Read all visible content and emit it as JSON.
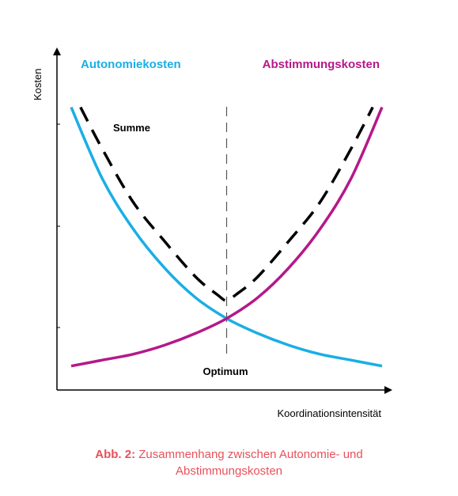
{
  "chart_data": {
    "type": "line",
    "xlabel": "Koordinationsintensität",
    "ylabel": "Kosten",
    "xlim": [
      0,
      1
    ],
    "ylim": [
      0,
      1
    ],
    "grid": false,
    "colors": {
      "autonomiekosten": "#1aaee5",
      "abstimmungskosten": "#b5188a",
      "summe": "#000000",
      "axis": "#000000"
    },
    "series": [
      {
        "name": "Autonomiekosten",
        "style": "solid",
        "x": [
          0.0,
          0.1,
          0.2,
          0.3,
          0.4,
          0.5,
          0.6,
          0.7,
          0.8,
          0.9,
          1.0
        ],
        "y": [
          0.9,
          0.66,
          0.49,
          0.36,
          0.26,
          0.19,
          0.14,
          0.1,
          0.07,
          0.05,
          0.03
        ]
      },
      {
        "name": "Abstimmungskosten",
        "style": "solid",
        "x": [
          0.0,
          0.1,
          0.2,
          0.3,
          0.4,
          0.5,
          0.6,
          0.7,
          0.8,
          0.9,
          1.0
        ],
        "y": [
          0.03,
          0.05,
          0.07,
          0.1,
          0.14,
          0.19,
          0.26,
          0.36,
          0.49,
          0.66,
          0.9
        ]
      },
      {
        "name": "Summe",
        "style": "dashed",
        "x": [
          0.03,
          0.1,
          0.2,
          0.3,
          0.4,
          0.47,
          0.5,
          0.53,
          0.6,
          0.7,
          0.8,
          0.9,
          0.97
        ],
        "y": [
          0.9,
          0.76,
          0.58,
          0.45,
          0.33,
          0.27,
          0.25,
          0.27,
          0.33,
          0.45,
          0.58,
          0.76,
          0.9
        ]
      }
    ],
    "optimum": {
      "x": 0.5,
      "label": "Optimum"
    },
    "annotations": {
      "autonomiekosten": "Autonomiekosten",
      "abstimmungskosten": "Abstimmungskosten",
      "summe": "Summe"
    }
  },
  "caption": {
    "label": "Abb. 2:",
    "text_line1": "Zusammenhang zwischen Autonomie- und",
    "text_line2": "Abstimmungskosten"
  }
}
